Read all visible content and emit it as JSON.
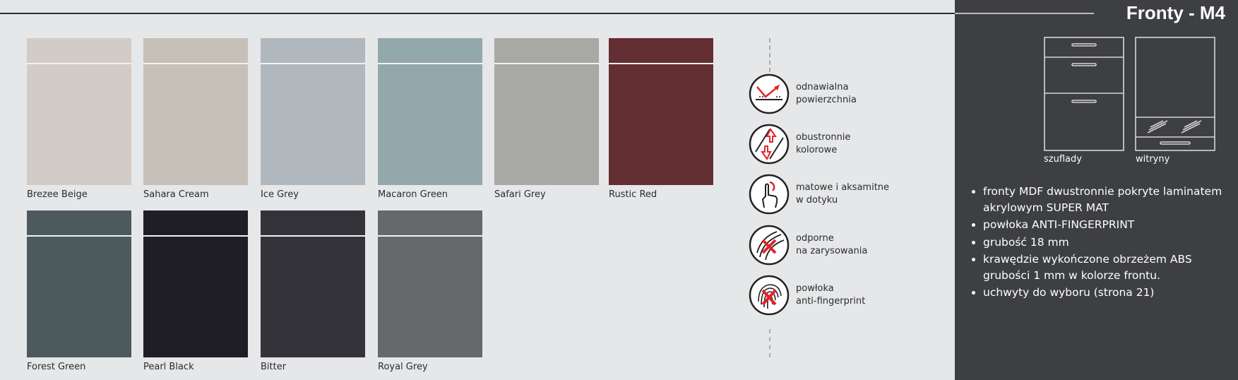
{
  "header": {
    "title": "Fronty - M4"
  },
  "swatches": [
    {
      "name": "Brezee Beige",
      "color": "#d3ccc6"
    },
    {
      "name": "Sahara Cream",
      "color": "#c6c0b8"
    },
    {
      "name": "Ice Grey",
      "color": "#b0b8be"
    },
    {
      "name": "Macaron Green",
      "color": "#93a8aa"
    },
    {
      "name": "Safari Grey",
      "color": "#a8a8a4"
    },
    {
      "name": "Rustic Red",
      "color": "#632f33"
    },
    {
      "name": "Forest Green",
      "color": "#4c5a5e"
    },
    {
      "name": "Pearl Black",
      "color": "#1f1e26"
    },
    {
      "name": "Bitter",
      "color": "#35333a"
    },
    {
      "name": "Royal Grey",
      "color": "#67686b"
    }
  ],
  "features": [
    {
      "icon": "renewable-surface-icon",
      "line1": "odnawialna",
      "line2": "powierzchnia"
    },
    {
      "icon": "double-sided-color-icon",
      "line1": "obustronnie",
      "line2": "kolorowe"
    },
    {
      "icon": "touch-icon",
      "line1": "matowe i aksamitne",
      "line2": "w dotyku"
    },
    {
      "icon": "scratch-resistant-icon",
      "line1": "odporne",
      "line2": "na zarysowania"
    },
    {
      "icon": "anti-fingerprint-icon",
      "line1": "powłoka",
      "line2": "anti-fingerprint"
    }
  ],
  "cabinets": {
    "drawers": "szuflady",
    "vitrines": "witryny"
  },
  "specs": [
    "fronty MDF dwustronnie pokryte laminatem akrylowym SUPER MAT",
    "powłoka ANTI-FINGERPRINT",
    "grubość 18 mm",
    "krawędzie wykończone obrzeżem ABS grubości 1 mm w kolorze frontu.",
    "uchwyty do wyboru (strona 21)"
  ],
  "colors": {
    "accent": "#e3232c",
    "panel": "#3e3f42",
    "background": "#e6e7e9"
  }
}
